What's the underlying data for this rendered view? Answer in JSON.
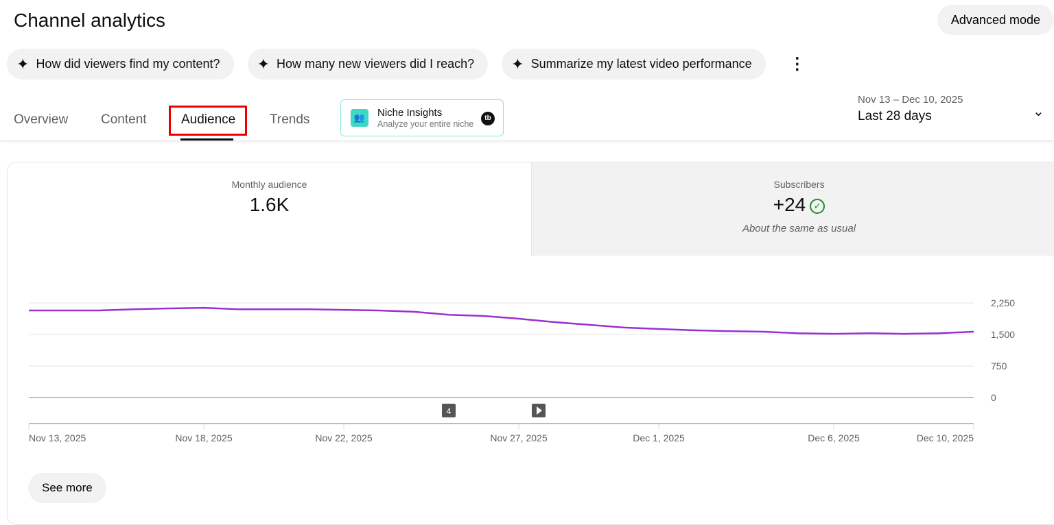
{
  "header": {
    "title": "Channel analytics",
    "advanced_mode": "Advanced mode"
  },
  "suggestions": [
    {
      "icon": "sparkle-icon",
      "label": "How did viewers find my content?"
    },
    {
      "icon": "sparkle-icon",
      "label": "How many new viewers did I reach?"
    },
    {
      "icon": "sparkle-icon",
      "label": "Summarize my latest video performance"
    }
  ],
  "tabs": [
    "Overview",
    "Content",
    "Audience",
    "Trends"
  ],
  "active_tab": "Audience",
  "niche": {
    "title": "Niche Insights",
    "subtitle": "Analyze your entire niche",
    "badge": "tb"
  },
  "date": {
    "range": "Nov 13 – Dec 10, 2025",
    "label": "Last 28 days"
  },
  "metrics": {
    "monthly": {
      "label": "Monthly audience",
      "value": "1.6K"
    },
    "subs": {
      "label": "Subscribers",
      "value": "+24",
      "note": "About the same as usual"
    }
  },
  "chart_data": {
    "type": "line",
    "x": [
      "Nov 13",
      "Nov 14",
      "Nov 15",
      "Nov 16",
      "Nov 17",
      "Nov 18",
      "Nov 19",
      "Nov 20",
      "Nov 21",
      "Nov 22",
      "Nov 23",
      "Nov 24",
      "Nov 25",
      "Nov 26",
      "Nov 27",
      "Nov 28",
      "Nov 29",
      "Nov 30",
      "Dec 1",
      "Dec 2",
      "Dec 3",
      "Dec 4",
      "Dec 5",
      "Dec 6",
      "Dec 7",
      "Dec 8",
      "Dec 9",
      "Dec 10"
    ],
    "values": [
      2070,
      2070,
      2070,
      2100,
      2120,
      2135,
      2100,
      2100,
      2100,
      2085,
      2070,
      2040,
      1970,
      1940,
      1875,
      1795,
      1730,
      1665,
      1630,
      1600,
      1580,
      1565,
      1530,
      1515,
      1530,
      1515,
      1530,
      1565
    ],
    "ylim": [
      0,
      2250
    ],
    "yticks": [
      "2,250",
      "1,500",
      "750",
      "0"
    ],
    "ytick_values": [
      2250,
      1500,
      750,
      0
    ],
    "xticks": [
      "Nov 13, 2025",
      "Nov 18, 2025",
      "Nov 22, 2025",
      "Nov 27, 2025",
      "Dec 1, 2025",
      "Dec 6, 2025",
      "Dec 10, 2025"
    ],
    "xtick_index": [
      0,
      5,
      9,
      14,
      18,
      23,
      27
    ],
    "markers": [
      {
        "label": "4",
        "index": 12
      },
      {
        "label": "play",
        "index": 15
      }
    ],
    "color": "#9b30d0",
    "grid": true
  },
  "see_more": "See more"
}
